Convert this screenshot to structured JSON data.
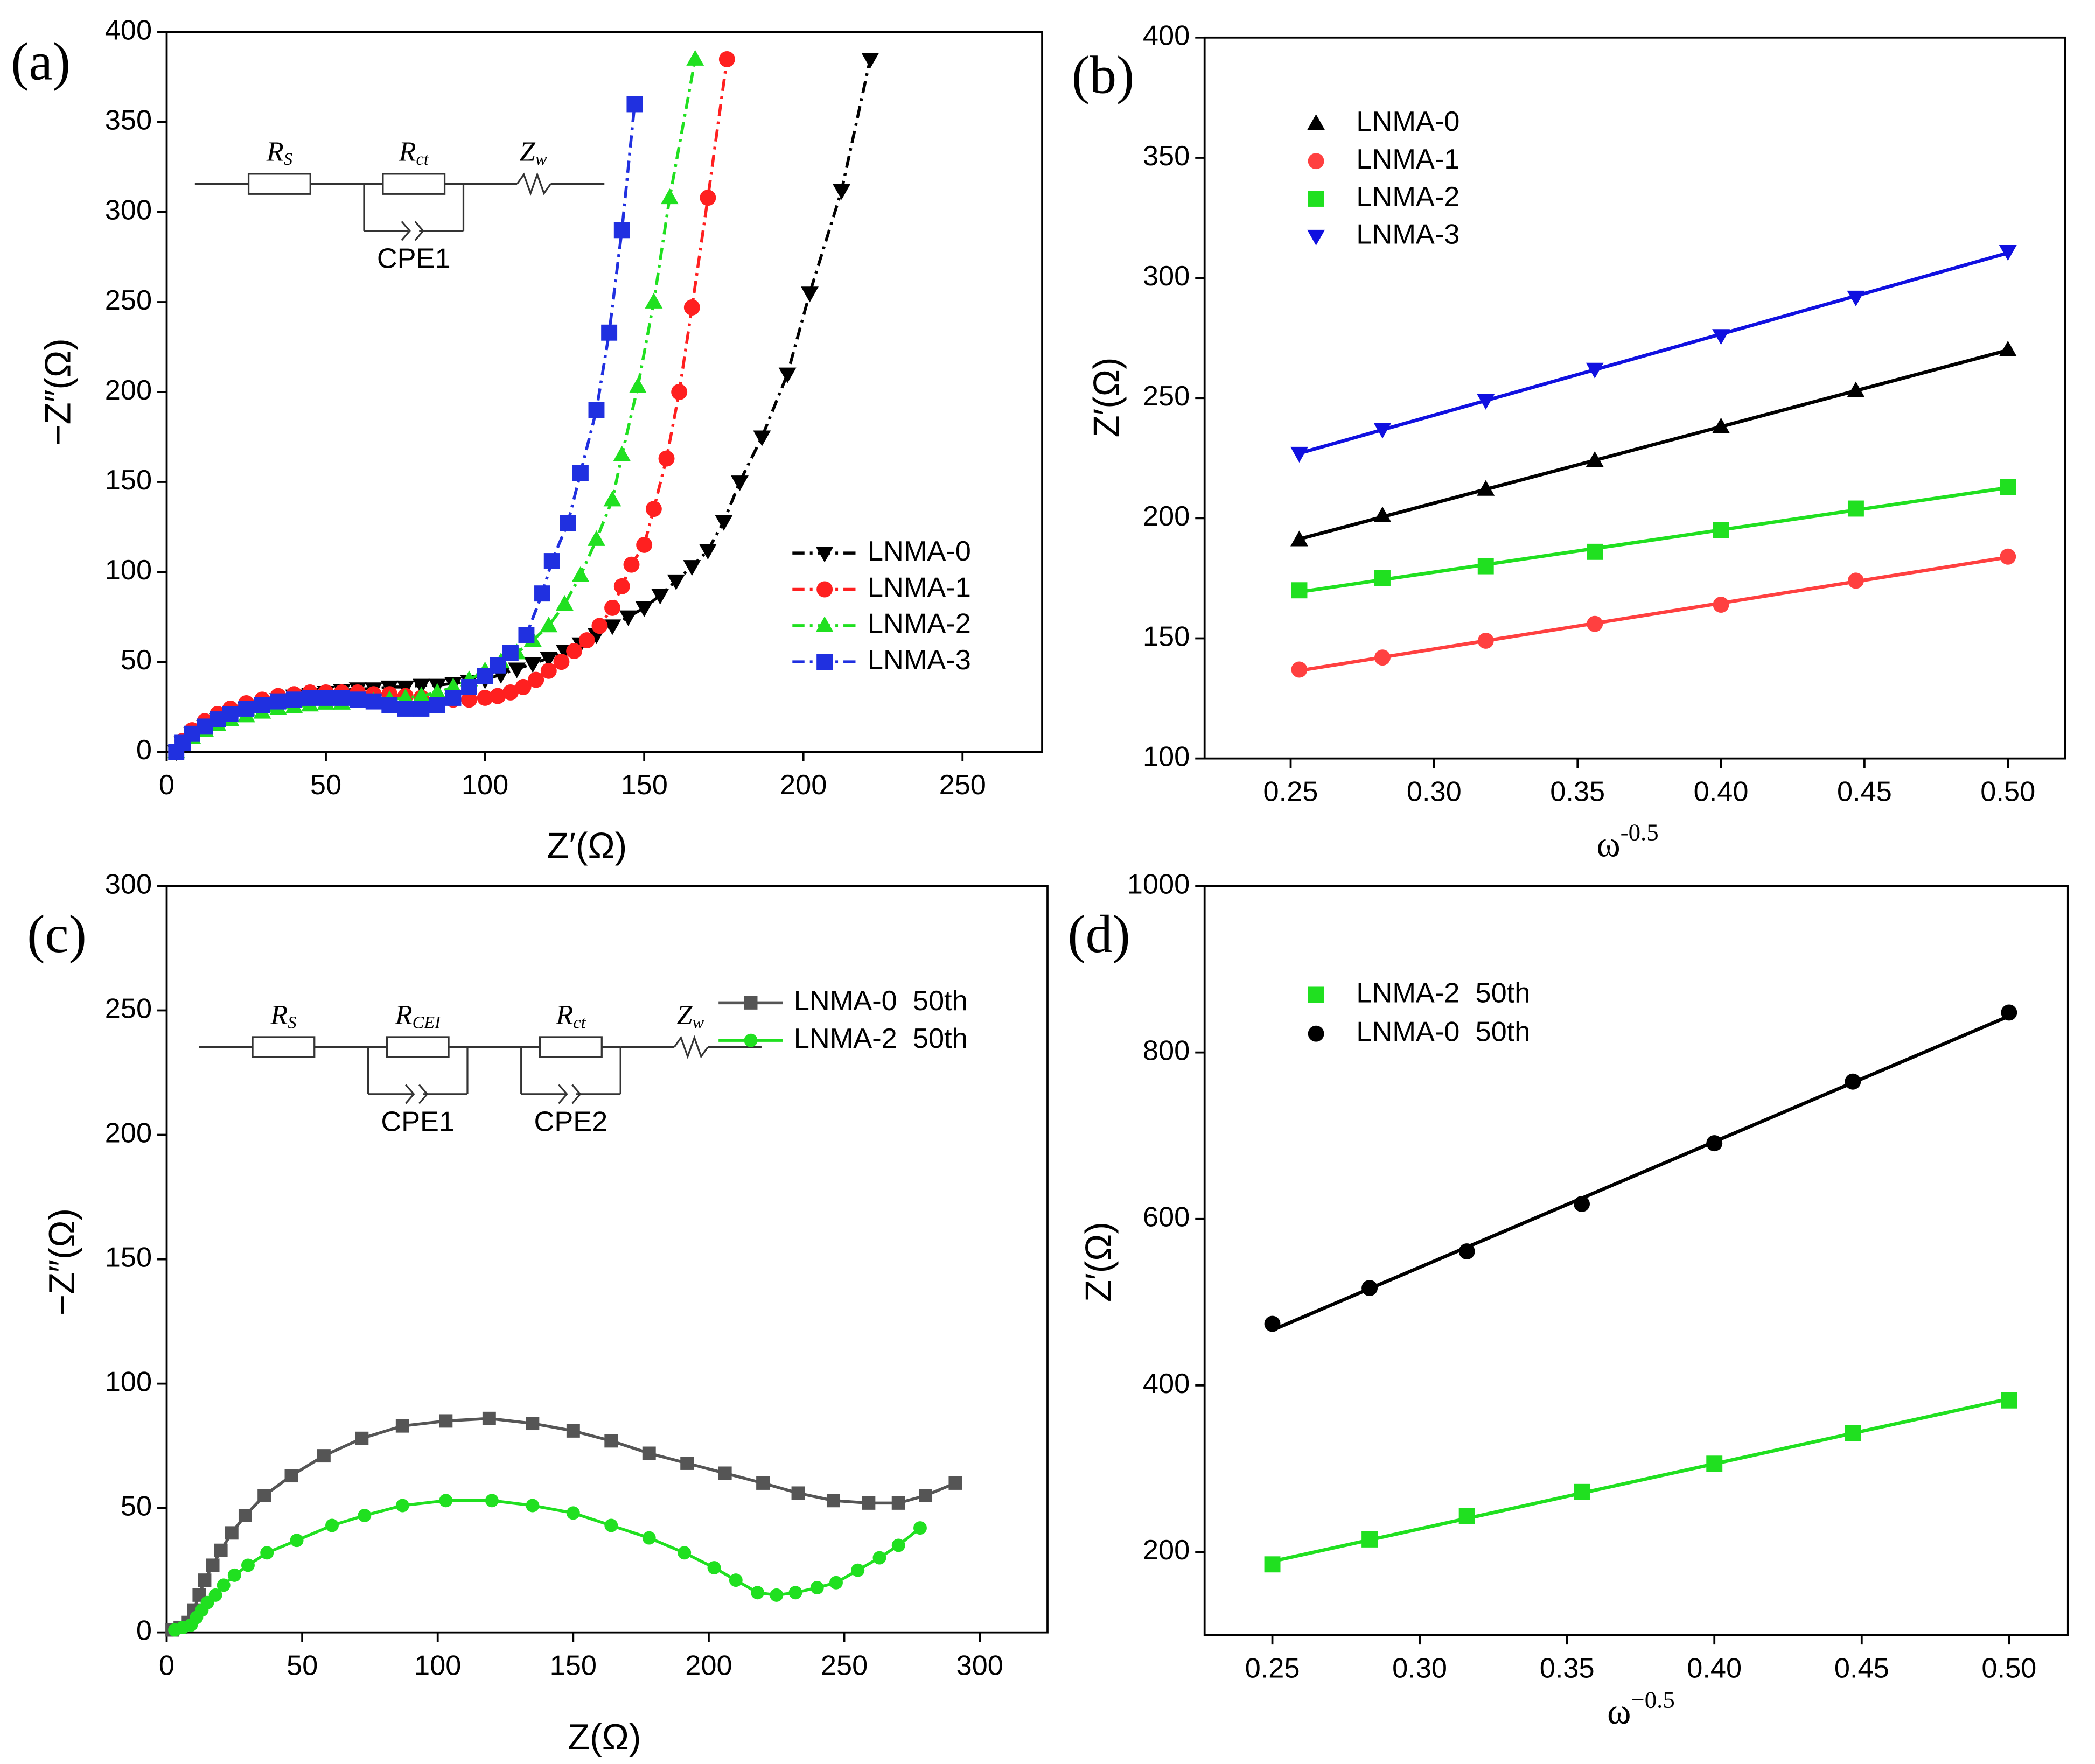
{
  "chart_data": [
    {
      "type": "line",
      "panel": "(a)",
      "xlabel": "Z′(Ω)",
      "ylabel": "−Z″(Ω)",
      "xlim": [
        0,
        275
      ],
      "ylim": [
        0,
        400
      ],
      "xticks": [
        0,
        50,
        100,
        150,
        200,
        250
      ],
      "yticks": [
        0,
        50,
        100,
        150,
        200,
        250,
        300,
        350,
        400
      ],
      "legend": "lower right",
      "circuit": [
        {
          "kind": "resistor",
          "symbol": "R",
          "subscript": "S"
        },
        {
          "kind": "resistor",
          "symbol": "R",
          "subscript": "ct",
          "cpe": "CPE1"
        },
        {
          "kind": "warburg",
          "symbol": "Z",
          "subscript": "w"
        }
      ],
      "series": [
        {
          "name": "LNMA-0",
          "color": "#000000",
          "marker": "triangle-down",
          "line_style": "dashdot",
          "x": [
            3,
            5,
            8,
            12,
            16,
            20,
            25,
            30,
            35,
            40,
            45,
            50,
            55,
            60,
            65,
            70,
            75,
            80,
            85,
            90,
            95,
            100,
            105,
            110,
            115,
            120,
            125,
            130,
            135,
            140,
            145,
            150,
            155,
            160,
            165,
            170,
            175,
            180,
            187,
            195,
            202,
            212,
            221
          ],
          "values": [
            0,
            5,
            10,
            14,
            18,
            21,
            24,
            27,
            29,
            31,
            32,
            33,
            34,
            35,
            35,
            36,
            36,
            37,
            37,
            38,
            39,
            40,
            43,
            46,
            49,
            52,
            56,
            60,
            65,
            70,
            75,
            80,
            87,
            95,
            103,
            112,
            128,
            150,
            175,
            210,
            255,
            312,
            385
          ]
        },
        {
          "name": "LNMA-1",
          "color": "#ff2020",
          "marker": "circle",
          "line_style": "dashdot",
          "x": [
            3,
            5,
            8,
            12,
            16,
            20,
            25,
            30,
            35,
            40,
            45,
            50,
            55,
            60,
            65,
            70,
            75,
            80,
            85,
            90,
            95,
            100,
            104,
            108,
            112,
            116,
            120,
            124,
            128,
            132,
            136,
            140,
            143,
            146,
            150,
            153,
            157,
            161,
            165,
            170,
            176
          ],
          "values": [
            0,
            6,
            12,
            17,
            21,
            24,
            27,
            29,
            31,
            32,
            33,
            33,
            33,
            33,
            32,
            32,
            31,
            30,
            29,
            29,
            29,
            30,
            31,
            33,
            36,
            40,
            45,
            50,
            56,
            62,
            70,
            80,
            92,
            104,
            115,
            135,
            163,
            200,
            247,
            308,
            385
          ]
        },
        {
          "name": "LNMA-2",
          "color": "#20e020",
          "marker": "triangle",
          "line_style": "dashdot",
          "x": [
            3,
            5,
            8,
            12,
            16,
            20,
            25,
            30,
            35,
            40,
            45,
            50,
            55,
            60,
            65,
            70,
            75,
            80,
            85,
            90,
            95,
            100,
            105,
            110,
            115,
            120,
            125,
            130,
            135,
            140,
            143,
            148,
            153,
            158,
            166
          ],
          "values": [
            0,
            4,
            8,
            12,
            15,
            18,
            20,
            22,
            24,
            25,
            26,
            27,
            27,
            28,
            28,
            29,
            30,
            31,
            33,
            36,
            40,
            45,
            50,
            55,
            62,
            70,
            82,
            98,
            118,
            140,
            165,
            203,
            250,
            308,
            385
          ]
        },
        {
          "name": "LNMA-3",
          "color": "#2030e0",
          "marker": "square",
          "line_style": "dashdot",
          "x": [
            3,
            5,
            8,
            12,
            16,
            20,
            25,
            30,
            35,
            40,
            45,
            50,
            55,
            60,
            65,
            70,
            75,
            80,
            85,
            90,
            95,
            100,
            104,
            108,
            113,
            118,
            121,
            126,
            130,
            135,
            139,
            143,
            147
          ],
          "values": [
            0,
            5,
            10,
            14,
            18,
            21,
            24,
            26,
            28,
            29,
            30,
            30,
            30,
            29,
            28,
            26,
            24,
            24,
            26,
            30,
            36,
            42,
            48,
            55,
            65,
            88,
            106,
            127,
            155,
            190,
            233,
            290,
            360
          ]
        }
      ]
    },
    {
      "type": "scatter",
      "panel": "(b)",
      "xlabel": {
        "base": "ω",
        "superscript": "-0.5"
      },
      "ylabel": "Z′(Ω)",
      "xlim": [
        0.22,
        0.52
      ],
      "ylim": [
        100,
        400
      ],
      "xticks": [
        0.25,
        {
          "value": 0.3,
          "label": "0.30"
        },
        0.35,
        {
          "value": 0.4,
          "label": "0.40"
        },
        0.45,
        {
          "value": 0.5,
          "label": "0.50"
        }
      ],
      "yticks": [
        100,
        150,
        200,
        250,
        300,
        350,
        400
      ],
      "legend": "upper left",
      "fit": "linear",
      "series": [
        {
          "name": "LNMA-0",
          "color": "#000000",
          "marker": "triangle",
          "x": [
            0.253,
            0.282,
            0.318,
            0.356,
            0.4,
            0.447,
            0.5
          ],
          "values": [
            191,
            201,
            212,
            224,
            238,
            253,
            270
          ]
        },
        {
          "name": "LNMA-1",
          "color": "#ff4040",
          "marker": "circle",
          "x": [
            0.253,
            0.282,
            0.318,
            0.356,
            0.4,
            0.447,
            0.5
          ],
          "values": [
            137,
            142,
            149,
            156,
            164,
            174,
            184
          ]
        },
        {
          "name": "LNMA-2",
          "color": "#20e020",
          "marker": "square",
          "x": [
            0.253,
            0.282,
            0.318,
            0.356,
            0.4,
            0.447,
            0.5
          ],
          "values": [
            170,
            175,
            180,
            186,
            195,
            204,
            213
          ]
        },
        {
          "name": "LNMA-3",
          "color": "#1010e0",
          "marker": "triangle-down",
          "x": [
            0.253,
            0.282,
            0.318,
            0.356,
            0.4,
            0.447,
            0.5
          ],
          "values": [
            227,
            237,
            249,
            262,
            276,
            292,
            311
          ]
        }
      ]
    },
    {
      "type": "line",
      "panel": "(c)",
      "xlabel": "Z(Ω)",
      "ylabel": "−Z″(Ω)",
      "xlim": [
        0,
        325
      ],
      "ylim": [
        0,
        300
      ],
      "xticks": [
        0,
        50,
        100,
        150,
        200,
        250,
        300
      ],
      "yticks": [
        0,
        50,
        100,
        150,
        200,
        250,
        300
      ],
      "legend": "upper right",
      "circuit": [
        {
          "kind": "resistor",
          "symbol": "R",
          "subscript": "S"
        },
        {
          "kind": "resistor",
          "symbol": "R",
          "subscript": "CEI",
          "cpe": "CPE1"
        },
        {
          "kind": "resistor",
          "symbol": "R",
          "subscript": "ct",
          "cpe": "CPE2"
        },
        {
          "kind": "warburg",
          "symbol": "Z",
          "subscript": "w"
        }
      ],
      "series": [
        {
          "name": "LNMA-0  50th",
          "color": "#555555",
          "marker": "square",
          "line_style": "solid",
          "x": [
            2,
            5,
            8,
            10,
            12,
            14,
            17,
            20,
            24,
            29,
            36,
            46,
            58,
            72,
            87,
            103,
            119,
            135,
            150,
            164,
            178,
            192,
            206,
            220,
            233,
            246,
            259,
            270,
            280,
            291
          ],
          "values": [
            1,
            2,
            4,
            9,
            15,
            21,
            27,
            33,
            40,
            47,
            55,
            63,
            71,
            78,
            83,
            85,
            86,
            84,
            81,
            77,
            72,
            68,
            64,
            60,
            56,
            53,
            52,
            52,
            55,
            60
          ]
        },
        {
          "name": "LNMA-2  50th",
          "color": "#20e020",
          "marker": "circle",
          "line_style": "solid",
          "x": [
            3,
            6,
            9,
            11,
            13,
            15,
            18,
            21,
            25,
            30,
            37,
            48,
            61,
            73,
            87,
            103,
            120,
            135,
            150,
            164,
            178,
            191,
            202,
            210,
            218,
            225,
            232,
            240,
            247,
            255,
            263,
            270,
            278
          ],
          "values": [
            1,
            2,
            3,
            6,
            9,
            12,
            15,
            19,
            23,
            27,
            32,
            37,
            43,
            47,
            51,
            53,
            53,
            51,
            48,
            43,
            38,
            32,
            26,
            21,
            16,
            15,
            16,
            18,
            20,
            25,
            30,
            35,
            42
          ]
        }
      ]
    },
    {
      "type": "scatter",
      "panel": "(d)",
      "xlabel": {
        "base": "ω",
        "superscript": "−0.5"
      },
      "ylabel": "Z′(Ω)",
      "xlim": [
        0.227,
        0.52
      ],
      "ylim": [
        100,
        1000
      ],
      "xticks": [
        0.25,
        {
          "value": 0.3,
          "label": "0.30"
        },
        0.35,
        {
          "value": 0.4,
          "label": "0.40"
        },
        0.45,
        {
          "value": 0.5,
          "label": "0.50"
        }
      ],
      "yticks": [
        200,
        400,
        600,
        800,
        1000
      ],
      "legend": "upper left",
      "fit": "linear",
      "series": [
        {
          "name": "LNMA-2  50th",
          "color": "#20e020",
          "marker": "square",
          "x": [
            0.25,
            0.283,
            0.316,
            0.355,
            0.4,
            0.447,
            0.5
          ],
          "values": [
            185,
            215,
            243,
            272,
            306,
            343,
            382
          ]
        },
        {
          "name": "LNMA-0  50th",
          "color": "#000000",
          "marker": "circle",
          "x": [
            0.25,
            0.283,
            0.316,
            0.355,
            0.4,
            0.447,
            0.5
          ],
          "values": [
            474,
            517,
            561,
            618,
            691,
            765,
            848
          ]
        }
      ]
    }
  ]
}
